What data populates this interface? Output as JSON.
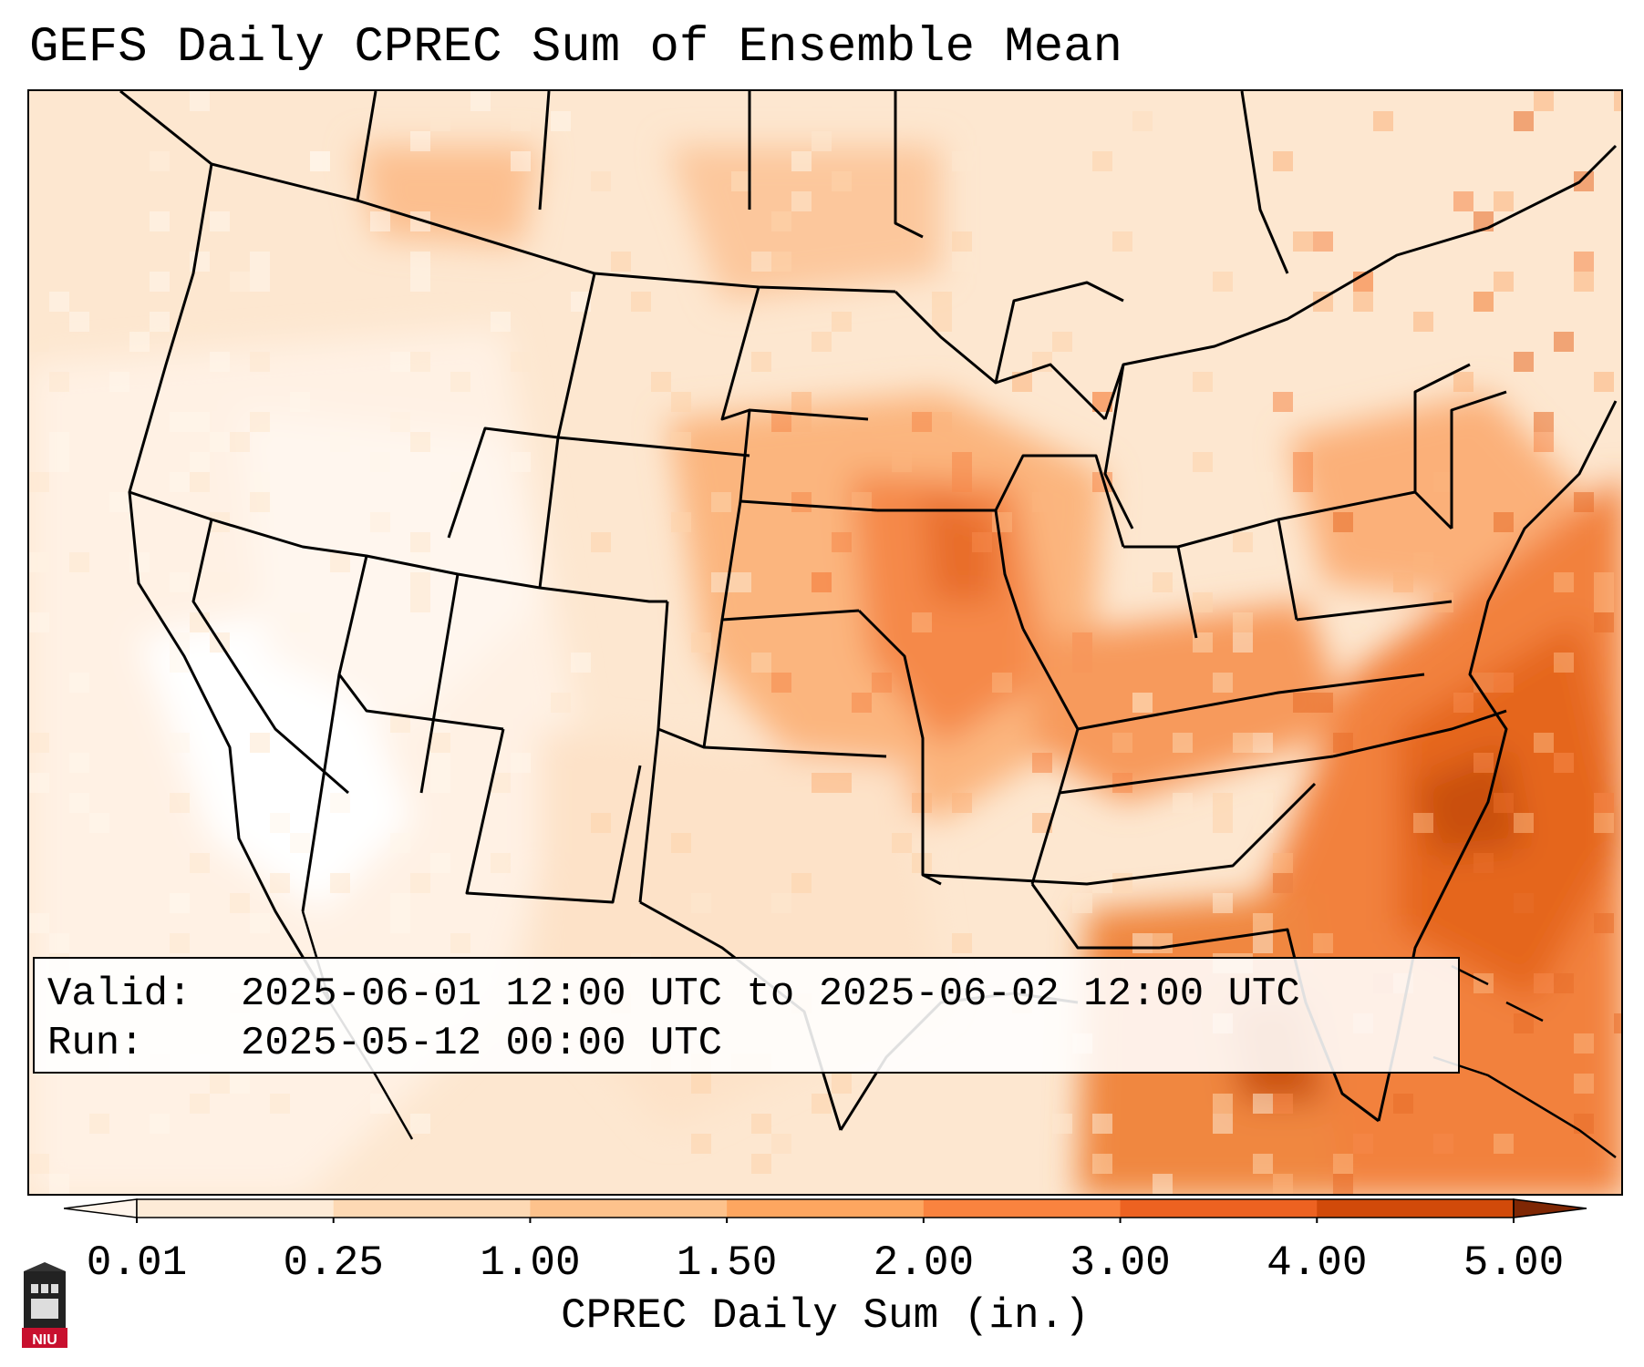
{
  "title": "GEFS Daily CPREC Sum of Ensemble Mean",
  "info": {
    "valid_label": "Valid:",
    "valid_value": "2025-06-01 12:00 UTC to 2025-06-02 12:00 UTC",
    "run_label": "Run:",
    "run_value": "2025-05-12 00:00 UTC"
  },
  "colorbar": {
    "title": "CPREC Daily Sum (in.)",
    "ticks": [
      "0.01",
      "0.25",
      "1.00",
      "1.50",
      "2.00",
      "3.00",
      "4.00",
      "5.00"
    ],
    "colors": [
      "#fdebd7",
      "#fdd9b4",
      "#fdc28c",
      "#fda660",
      "#f9833f",
      "#ed6221",
      "#d14a0a",
      "#a53603"
    ],
    "under_color": "#fff5eb",
    "over_color": "#7f2704"
  },
  "logo": {
    "text": "NIU",
    "icon": "university-logo-icon"
  },
  "map": {
    "region": "Contiguous United States",
    "icon": "precipitation-map"
  }
}
